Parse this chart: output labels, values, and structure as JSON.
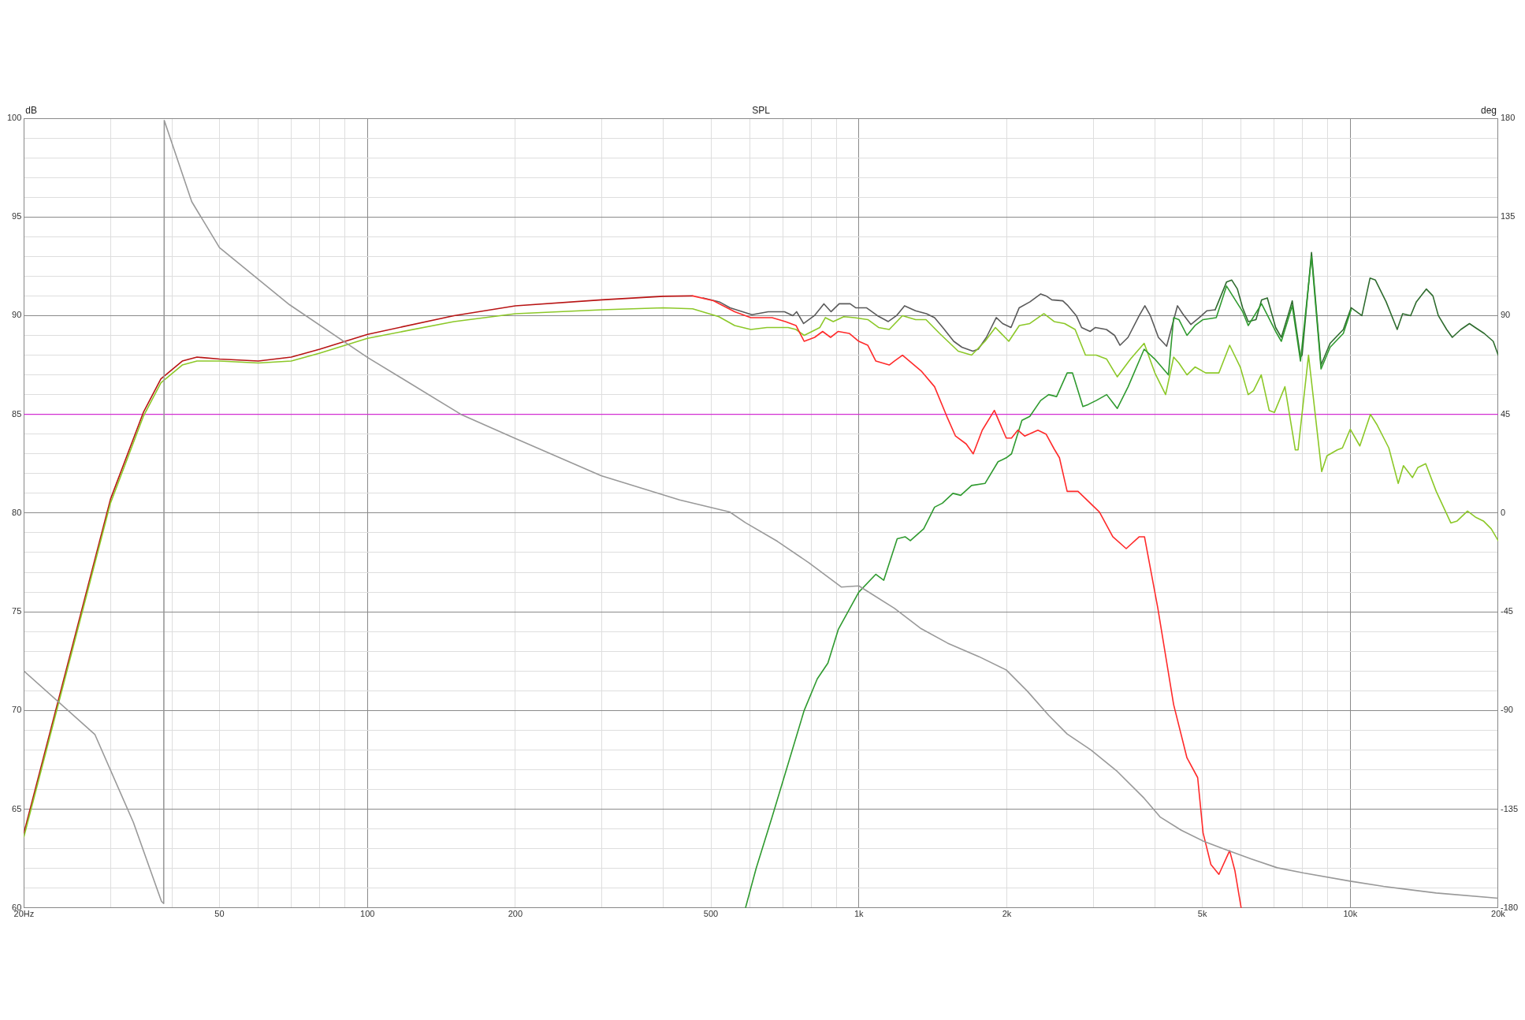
{
  "chart_data": {
    "type": "line",
    "title": "SPL",
    "ylabel": "dB",
    "y2label": "deg",
    "xlim": [
      20,
      20000
    ],
    "log": "x",
    "grid": true,
    "legend": false,
    "marker": "none",
    "line_style": "solid",
    "xticks": [
      {
        "value": 20,
        "label": "20Hz"
      },
      {
        "value": 30,
        "label": null
      },
      {
        "value": 40,
        "label": null
      },
      50,
      {
        "value": 60,
        "label": null
      },
      {
        "value": 70,
        "label": null
      },
      {
        "value": 80,
        "label": null
      },
      {
        "value": 90,
        "label": null
      },
      100,
      200,
      {
        "value": 300,
        "label": null
      },
      {
        "value": 400,
        "label": null
      },
      500,
      {
        "value": 600,
        "label": null
      },
      {
        "value": 700,
        "label": null
      },
      {
        "value": 800,
        "label": null
      },
      {
        "value": 900,
        "label": null
      },
      {
        "value": 1000,
        "label": "1k"
      },
      {
        "value": 2000,
        "label": "2k"
      },
      {
        "value": 3000,
        "label": null
      },
      {
        "value": 4000,
        "label": null
      },
      {
        "value": 5000,
        "label": "5k"
      },
      {
        "value": 6000,
        "label": null
      },
      {
        "value": 7000,
        "label": null
      },
      {
        "value": 8000,
        "label": null
      },
      {
        "value": 9000,
        "label": null
      },
      {
        "value": 10000,
        "label": "10k"
      },
      {
        "value": 20000,
        "label": "20k"
      }
    ],
    "ylim": [
      60,
      100
    ],
    "yticks": [
      60,
      {
        "value": 61,
        "label": null
      },
      {
        "value": 62,
        "label": null
      },
      {
        "value": 63,
        "label": null
      },
      {
        "value": 64,
        "label": null
      },
      65,
      {
        "value": 66,
        "label": null
      },
      {
        "value": 67,
        "label": null
      },
      {
        "value": 68,
        "label": null
      },
      {
        "value": 69,
        "label": null
      },
      70,
      {
        "value": 71,
        "label": null
      },
      {
        "value": 72,
        "label": null
      },
      {
        "value": 73,
        "label": null
      },
      {
        "value": 74,
        "label": null
      },
      75,
      {
        "value": 76,
        "label": null
      },
      {
        "value": 77,
        "label": null
      },
      {
        "value": 78,
        "label": null
      },
      {
        "value": 79,
        "label": null
      },
      80,
      {
        "value": 81,
        "label": null
      },
      {
        "value": 82,
        "label": null
      },
      {
        "value": 83,
        "label": null
      },
      {
        "value": 84,
        "label": null
      },
      85,
      {
        "value": 86,
        "label": null
      },
      {
        "value": 87,
        "label": null
      },
      {
        "value": 88,
        "label": null
      },
      {
        "value": 89,
        "label": null
      },
      90,
      {
        "value": 91,
        "label": null
      },
      {
        "value": 92,
        "label": null
      },
      {
        "value": 93,
        "label": null
      },
      {
        "value": 94,
        "label": null
      },
      95,
      {
        "value": 96,
        "label": null
      },
      {
        "value": 97,
        "label": null
      },
      {
        "value": 98,
        "label": null
      },
      {
        "value": 99,
        "label": null
      },
      100
    ],
    "y2lim": [
      -180,
      180
    ],
    "y2ticks": [
      -180,
      -135,
      -90,
      -45,
      0,
      45,
      90,
      135,
      180
    ],
    "ref_lines": [
      {
        "axis": "y",
        "value": 85,
        "color": "#d22fd2"
      }
    ],
    "series": [
      {
        "color": "#999999",
        "axis": "y2",
        "x": [
          20,
          27.9,
          33.4,
          38.1,
          38.5,
          38.6,
          43.9,
          50,
          69.4,
          100,
          155,
          200,
          299,
          432,
          546,
          588,
          683,
          792,
          921,
          1000,
          1181,
          1339,
          1516,
          1754,
          1995,
          2203,
          2434,
          2654,
          2966,
          3357,
          3807,
          4101,
          4530,
          5018,
          5545,
          6275,
          7104,
          8042,
          10000,
          11690,
          14960,
          20000
        ],
        "values": [
          -72,
          -101,
          -141,
          -177,
          -178,
          179,
          142,
          121,
          95,
          71,
          45,
          34,
          17,
          6,
          0.5,
          -4.4,
          -12.9,
          -22.7,
          -33.7,
          -33.2,
          -43.4,
          -52.7,
          -59.3,
          -65.4,
          -71.5,
          -81.2,
          -92.2,
          -100.7,
          -108,
          -117.8,
          -130,
          -138.5,
          -144.6,
          -149.5,
          -153.2,
          -157.6,
          -161.7,
          -164.1,
          -167.8,
          -170.2,
          -173.2,
          -175.6
        ]
      },
      {
        "color": "#ff2a2a",
        "x": [
          459,
          506,
          559,
          603,
          666,
          709,
          745,
          774,
          813,
          844,
          876,
          908,
          956,
          1000,
          1043,
          1083,
          1153,
          1181,
          1227,
          1339,
          1426,
          1516,
          1573,
          1654,
          1709,
          1783,
          1887,
          1995,
          2045,
          2106,
          2175,
          2314,
          2404,
          2497,
          2560,
          2654,
          2793,
          3088,
          3287,
          3500,
          3721,
          3813,
          4058,
          4371,
          4653,
          4892,
          5018,
          5205,
          5404,
          5683,
          5823,
          5998
        ],
        "values": [
          91.0,
          90.76,
          90.2,
          89.9,
          89.9,
          89.7,
          89.5,
          88.7,
          88.9,
          89.2,
          88.9,
          89.2,
          89.1,
          88.7,
          88.5,
          87.7,
          87.5,
          87.7,
          88.0,
          87.2,
          86.4,
          84.8,
          83.9,
          83.5,
          83.0,
          84.2,
          85.2,
          83.8,
          83.8,
          84.2,
          83.9,
          84.2,
          84.0,
          83.25,
          82.8,
          81.1,
          81.1,
          80.05,
          78.8,
          78.2,
          78.8,
          78.8,
          75.2,
          70.3,
          67.6,
          66.6,
          63.8,
          62.2,
          61.7,
          62.9,
          61.9,
          60.0
        ]
      },
      {
        "color": "#2f9a2f",
        "x": [
          588,
          618,
          666,
          718,
          774,
          823,
          865,
          908,
          1000,
          1083,
          1124,
          1197,
          1242,
          1273,
          1355,
          1426,
          1479,
          1554,
          1612,
          1696,
          1806,
          1920,
          1995,
          2045,
          2147,
          2228,
          2344,
          2434,
          2526,
          2654,
          2721,
          2857,
          2929,
          3041,
          3194,
          3357,
          3532,
          3807,
          4003,
          4265,
          4371,
          4480,
          4653,
          4832,
          5018,
          5337,
          5600,
          6040,
          6200,
          6600,
          7050,
          7240,
          7620,
          7920,
          8340,
          8720,
          9100,
          9680,
          10040
        ],
        "values": [
          60.0,
          62.0,
          64.6,
          67.3,
          70.0,
          71.6,
          72.4,
          74.1,
          76.0,
          76.9,
          76.6,
          78.7,
          78.8,
          78.6,
          79.2,
          80.3,
          80.5,
          81.0,
          80.9,
          81.4,
          81.5,
          82.6,
          82.8,
          83.0,
          84.7,
          84.9,
          85.7,
          86.0,
          85.9,
          87.1,
          87.1,
          85.4,
          85.5,
          85.7,
          86.0,
          85.3,
          86.4,
          88.3,
          87.8,
          87.0,
          89.9,
          89.8,
          89.0,
          89.5,
          89.8,
          89.9,
          91.5,
          90.2,
          89.5,
          90.6,
          89.2,
          88.7,
          90.5,
          87.7,
          93.0,
          87.3,
          88.4,
          89.1,
          90.3
        ]
      },
      {
        "color": "#8cc828",
        "x": [
          20,
          25,
          30,
          35,
          38,
          42,
          45,
          50,
          60,
          70,
          80,
          100,
          150,
          200,
          300,
          400,
          459,
          519,
          559,
          603,
          650,
          718,
          745,
          774,
          833,
          855,
          887,
          932,
          980,
          1043,
          1097,
          1153,
          1227,
          1305,
          1370,
          1460,
          1593,
          1696,
          1806,
          1896,
          2019,
          2121,
          2228,
          2380,
          2497,
          2623,
          2755,
          2892,
          3041,
          3194,
          3357,
          3571,
          3807,
          4003,
          4210,
          4371,
          4480,
          4653,
          4832,
          5080,
          5404,
          5683,
          5972,
          6199,
          6354,
          6589,
          6839,
          7010,
          7363,
          7731,
          7830,
          8224,
          8748,
          8966,
          9410,
          9640,
          10000,
          10460,
          10990,
          11320,
          11980,
          12520,
          12830,
          13380,
          13720,
          14240,
          14960,
          16020,
          16500,
          17320,
          17970,
          18660,
          19360,
          20000
        ],
        "values": [
          63.6,
          72.9,
          80.5,
          84.9,
          86.6,
          87.5,
          87.7,
          87.7,
          87.6,
          87.7,
          88.1,
          88.85,
          89.7,
          90.1,
          90.3,
          90.4,
          90.35,
          89.95,
          89.5,
          89.3,
          89.4,
          89.4,
          89.3,
          89.0,
          89.4,
          89.9,
          89.7,
          89.95,
          89.9,
          89.8,
          89.4,
          89.3,
          90.0,
          89.8,
          89.8,
          89.1,
          88.2,
          88.0,
          88.7,
          89.4,
          88.7,
          89.5,
          89.6,
          90.1,
          89.7,
          89.6,
          89.3,
          88.0,
          88.0,
          87.8,
          86.9,
          87.8,
          88.6,
          87.1,
          86.0,
          87.9,
          87.6,
          87.0,
          87.4,
          87.1,
          87.1,
          88.5,
          87.4,
          86.0,
          86.2,
          87.0,
          85.2,
          85.1,
          86.4,
          83.2,
          83.2,
          88.0,
          82.1,
          82.9,
          83.2,
          83.3,
          84.25,
          83.4,
          85.0,
          84.5,
          83.3,
          81.5,
          82.4,
          81.8,
          82.3,
          82.5,
          81.1,
          79.5,
          79.6,
          80.1,
          79.8,
          79.6,
          79.2,
          78.6
        ]
      },
      {
        "color": "#b81414",
        "x": [
          20,
          25,
          30,
          35,
          38,
          42,
          45,
          50,
          60,
          70,
          80,
          100,
          150,
          200,
          300,
          400,
          459
        ],
        "values": [
          63.8,
          73.1,
          80.7,
          85.1,
          86.8,
          87.7,
          87.9,
          87.8,
          87.7,
          87.9,
          88.3,
          89.05,
          90.0,
          90.5,
          90.8,
          90.98,
          91.0
        ]
      },
      {
        "color": "#5a5a5a",
        "x": [
          482,
          520,
          547,
          606,
          654,
          706,
          734,
          747,
          772,
          812,
          849,
          878,
          912,
          960,
          985,
          1036,
          1091,
          1148,
          1193,
          1239,
          1304,
          1373,
          1426,
          1482,
          1560,
          1621,
          1706,
          1750,
          1818,
          1904,
          1962,
          2040,
          2120,
          2230,
          2345,
          2405,
          2470,
          2600,
          2665,
          2770,
          2840,
          2955,
          3030,
          3190,
          3315,
          3400,
          3530,
          3720,
          3820,
          3920,
          4070,
          4230,
          4450,
          4560,
          4740,
          4930,
          5110,
          5310
        ],
        "values": [
          90.9,
          90.7,
          90.4,
          90.05,
          90.2,
          90.2,
          90.0,
          90.2,
          89.6,
          90.0,
          90.6,
          90.2,
          90.6,
          90.6,
          90.4,
          90.4,
          90.0,
          89.7,
          90.0,
          90.5,
          90.25,
          90.1,
          89.9,
          89.4,
          88.7,
          88.4,
          88.2,
          88.3,
          88.9,
          89.9,
          89.6,
          89.4,
          90.4,
          90.7,
          91.1,
          91.0,
          90.8,
          90.75,
          90.5,
          90.0,
          89.4,
          89.2,
          89.4,
          89.3,
          89.0,
          88.5,
          88.9,
          90.0,
          90.5,
          90.0,
          88.9,
          88.45,
          90.5,
          90.1,
          89.55,
          89.9,
          90.25,
          90.3
        ]
      },
      {
        "color": "#2e6b2e",
        "x": [
          5310,
          5385,
          5600,
          5740,
          5893,
          6040,
          6200,
          6430,
          6600,
          6780,
          7050,
          7240,
          7520,
          7620,
          7920,
          7980,
          8340,
          8720,
          9100,
          9680,
          10040,
          10560,
          10970,
          11250,
          11830,
          12460,
          12780,
          13270,
          13630,
          14280,
          14730,
          15110,
          15710,
          16130,
          16790,
          17480,
          17960,
          18730,
          19540,
          20000
        ],
        "values": [
          90.3,
          90.66,
          91.7,
          91.8,
          91.35,
          90.4,
          89.7,
          89.8,
          90.8,
          90.9,
          89.4,
          88.9,
          90.25,
          90.75,
          87.9,
          88.0,
          93.2,
          87.5,
          88.6,
          89.3,
          90.4,
          90.0,
          91.9,
          91.8,
          90.7,
          89.3,
          90.1,
          90.0,
          90.7,
          91.35,
          91.0,
          90.0,
          89.3,
          88.9,
          89.3,
          89.6,
          89.4,
          89.1,
          88.7,
          88.0
        ]
      }
    ]
  }
}
